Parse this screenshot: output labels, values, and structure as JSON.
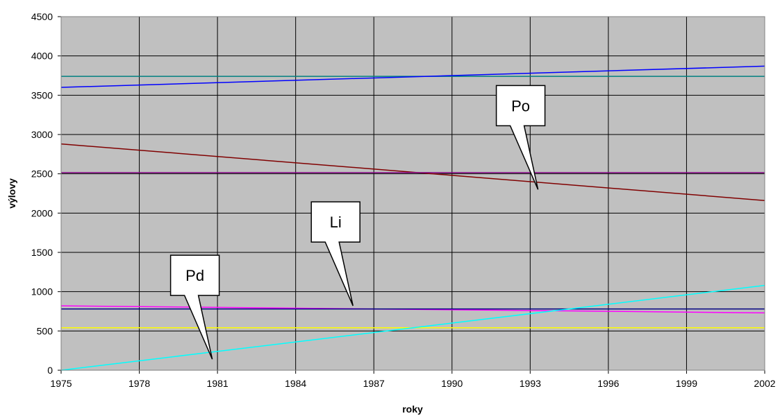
{
  "chart_data": {
    "type": "line",
    "title": "",
    "xlabel": "roky",
    "ylabel": "výlovy",
    "xlim": [
      1975,
      2002
    ],
    "ylim": [
      0,
      4500
    ],
    "x_ticks": [
      "1975",
      "1978",
      "1981",
      "1984",
      "1987",
      "1990",
      "1993",
      "1996",
      "1999",
      "2002"
    ],
    "y_ticks": [
      "0",
      "500",
      "1000",
      "1500",
      "2000",
      "2500",
      "3000",
      "3500",
      "4000",
      "4500"
    ],
    "grid": true,
    "plot_background": "#c0c0c0",
    "series": [
      {
        "color": "#008080",
        "x": [
          1975,
          2002
        ],
        "y": [
          3740,
          3740
        ]
      },
      {
        "color": "#0000ff",
        "x": [
          1975,
          2002
        ],
        "y": [
          3600,
          3870
        ]
      },
      {
        "color": "#800000",
        "x": [
          1975,
          2002
        ],
        "y": [
          2880,
          2160
        ]
      },
      {
        "color": "#800080",
        "x": [
          1975,
          2002
        ],
        "y": [
          2515,
          2515
        ]
      },
      {
        "color": "#ff00ff",
        "x": [
          1975,
          2002
        ],
        "y": [
          820,
          730
        ]
      },
      {
        "color": "#000080",
        "x": [
          1975,
          2002
        ],
        "y": [
          780,
          780
        ]
      },
      {
        "color": "#ffff00",
        "x": [
          1975,
          2002
        ],
        "y": [
          540,
          540
        ]
      },
      {
        "color": "#00ffff",
        "x": [
          1975,
          2002
        ],
        "y": [
          0,
          1080
        ]
      }
    ],
    "annotations": [
      {
        "text": "Po",
        "x": 1993.3,
        "y": 2300
      },
      {
        "text": "Li",
        "x": 1986.2,
        "y": 820
      },
      {
        "text": "Pd",
        "x": 1980.8,
        "y": 140
      }
    ]
  }
}
